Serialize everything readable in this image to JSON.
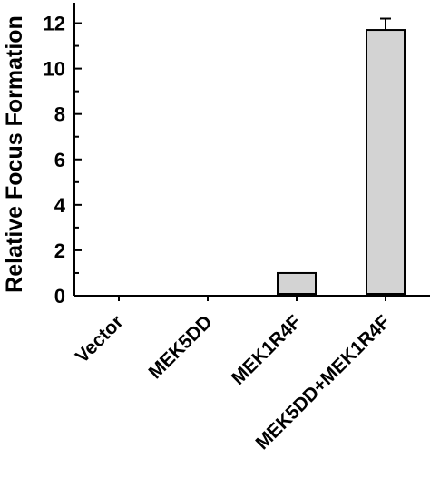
{
  "chart_data": {
    "type": "bar",
    "categories": [
      "Vector",
      "MEK5DD",
      "MEK1R4F",
      "MEK5DD+MEK1R4F"
    ],
    "values": [
      0,
      0,
      1.0,
      11.7
    ],
    "error_upper": [
      0,
      0,
      0,
      0.5
    ],
    "ylabel": "Relative Focus Formation",
    "xlabel": "",
    "ylim": [
      0,
      12.9
    ],
    "yticks": [
      0,
      2,
      4,
      6,
      8,
      10,
      12
    ],
    "grid": false,
    "legend": "none",
    "colors": {
      "bar_fill": "#d3d3d3",
      "bar_stroke": "#000000",
      "axis": "#000000"
    }
  }
}
